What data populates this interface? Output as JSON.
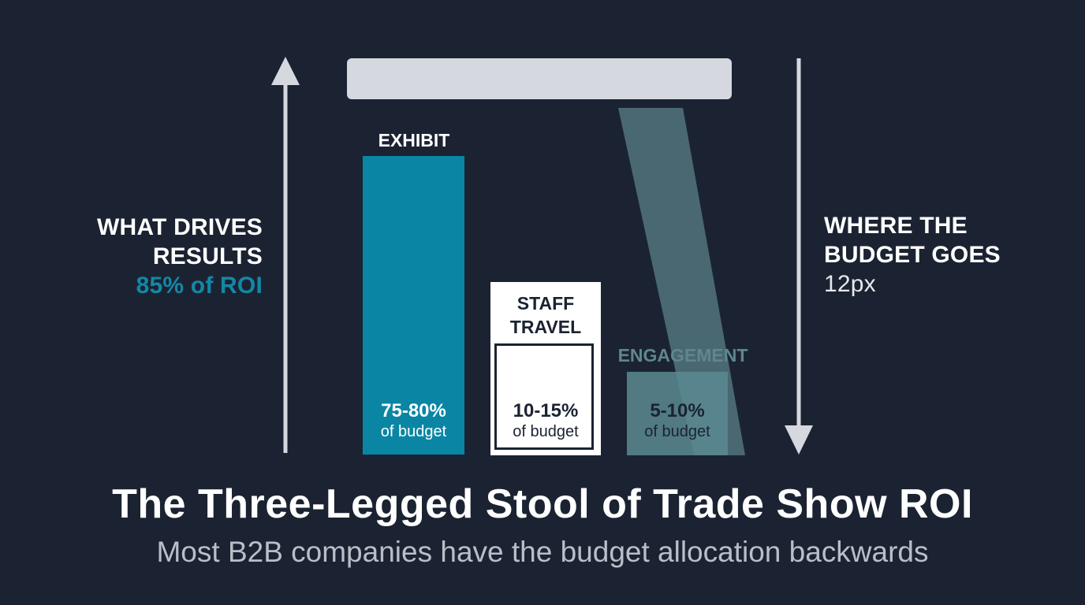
{
  "left_label": {
    "line1": "WHAT DRIVES",
    "line2": "RESULTS",
    "accent": "85% of ROI"
  },
  "right_label": {
    "line1": "WHERE THE",
    "line2": "BUDGET GOES",
    "sub": "12px"
  },
  "legs": [
    {
      "title": "EXHIBIT",
      "percent": "75-80%",
      "unit": "of budget",
      "color": "#0a86a4"
    },
    {
      "title_line1": "STAFF",
      "title_line2": "TRAVEL",
      "percent": "10-15%",
      "unit": "of budget",
      "color": "#ffffff"
    },
    {
      "title": "ENGAGEMENT",
      "percent": "5-10%",
      "unit": "of budget",
      "color": "#5a8a92"
    }
  ],
  "title": "The Three-Legged Stool of Trade Show ROI",
  "subtitle": "Most B2B companies have the budget allocation backwards",
  "colors": {
    "background": "#1b2332",
    "accent": "#1388a6",
    "seat": "#d5d9df",
    "arrow": "#d5d9df"
  }
}
